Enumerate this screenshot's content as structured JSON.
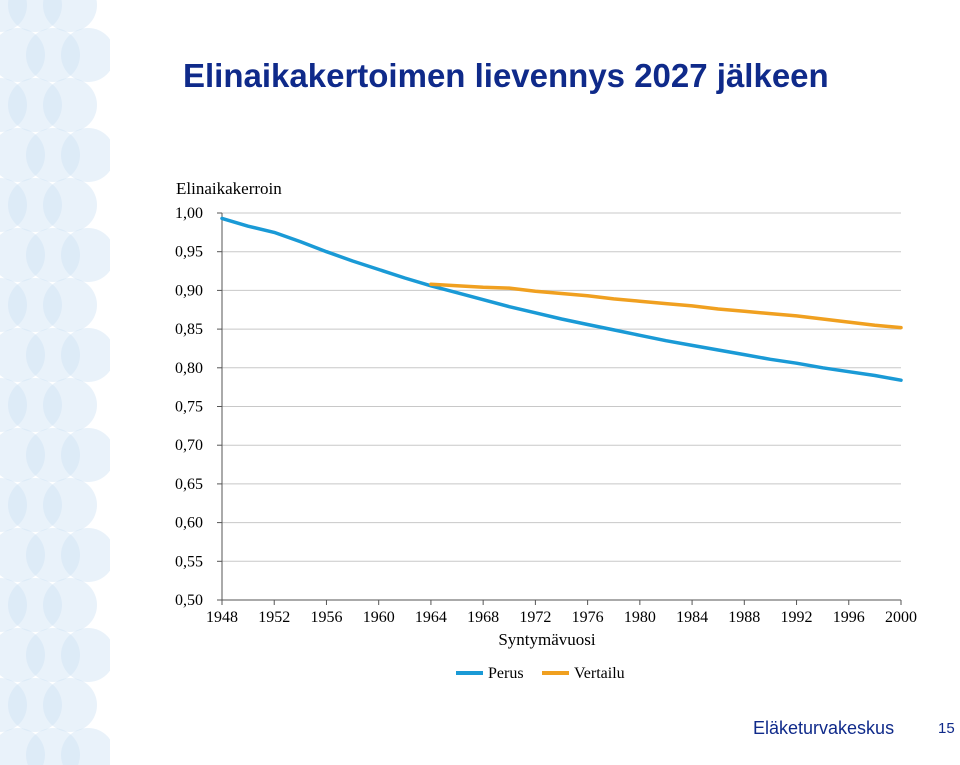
{
  "slide": {
    "title": "Elinaikakertoimen lievennys 2027 jälkeen",
    "footer_org": "Eläketurvakeskus",
    "page_number": "15"
  },
  "colors": {
    "title": "#0f2a8a",
    "perus": "#1a9ad6",
    "vertailu": "#f0a020",
    "gridline": "#c8c8c8",
    "decoration": "#cfe2f5"
  },
  "chart_data": {
    "type": "line",
    "title": "",
    "ylabel": "Elinaikakerroin",
    "xlabel": "Syntymävuosi",
    "xlim": [
      1948,
      2000
    ],
    "ylim": [
      0.5,
      1.0
    ],
    "xticks": [
      "1948",
      "1952",
      "1956",
      "1960",
      "1964",
      "1968",
      "1972",
      "1976",
      "1980",
      "1984",
      "1988",
      "1992",
      "1996",
      "2000"
    ],
    "yticks": [
      "1,00",
      "0,95",
      "0,90",
      "0,85",
      "0,80",
      "0,75",
      "0,70",
      "0,65",
      "0,60",
      "0,55",
      "0,50"
    ],
    "grid": true,
    "legend": "bottom",
    "series": [
      {
        "name": "Perus",
        "color": "#1a9ad6",
        "x": [
          1948,
          1950,
          1952,
          1954,
          1956,
          1958,
          1960,
          1962,
          1964,
          1966,
          1968,
          1970,
          1972,
          1974,
          1976,
          1978,
          1980,
          1982,
          1984,
          1986,
          1988,
          1990,
          1992,
          1994,
          1996,
          1998,
          2000
        ],
        "y": [
          0.993,
          0.983,
          0.975,
          0.963,
          0.95,
          0.938,
          0.927,
          0.916,
          0.906,
          0.897,
          0.888,
          0.879,
          0.871,
          0.863,
          0.856,
          0.849,
          0.842,
          0.835,
          0.829,
          0.823,
          0.817,
          0.811,
          0.806,
          0.8,
          0.795,
          0.79,
          0.784
        ]
      },
      {
        "name": "Vertailu",
        "color": "#f0a020",
        "x": [
          1964,
          1966,
          1968,
          1970,
          1972,
          1974,
          1976,
          1978,
          1980,
          1982,
          1984,
          1986,
          1988,
          1990,
          1992,
          1994,
          1996,
          1998,
          2000
        ],
        "y": [
          0.908,
          0.906,
          0.904,
          0.903,
          0.899,
          0.896,
          0.893,
          0.889,
          0.886,
          0.883,
          0.88,
          0.876,
          0.873,
          0.87,
          0.867,
          0.863,
          0.859,
          0.855,
          0.852
        ]
      }
    ]
  }
}
